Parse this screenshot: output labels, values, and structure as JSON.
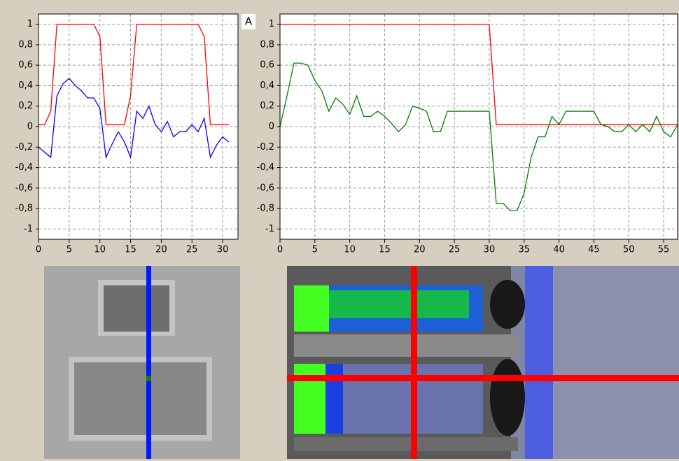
{
  "label": "A",
  "chart_data": [
    {
      "type": "line",
      "x": [
        0,
        1,
        2,
        3,
        4,
        5,
        6,
        7,
        8,
        9,
        10,
        11,
        12,
        13,
        14,
        15,
        16,
        17,
        18,
        19,
        20,
        21,
        22,
        23,
        24,
        25,
        26,
        27,
        28,
        29,
        30,
        31
      ],
      "series": [
        {
          "color": "#ff0000",
          "values": [
            0.02,
            0.02,
            0.15,
            1,
            1,
            1,
            1,
            1,
            1,
            1,
            0.88,
            0.02,
            0.02,
            0.02,
            0.02,
            0.3,
            1,
            1,
            1,
            1,
            1,
            1,
            1,
            1,
            1,
            1,
            1,
            0.88,
            0.02,
            0.02,
            0.02,
            0.02
          ]
        },
        {
          "color": "#0000ff",
          "values": [
            -0.2,
            -0.25,
            -0.3,
            0.3,
            0.42,
            0.47,
            0.4,
            0.35,
            0.28,
            0.28,
            0.18,
            -0.3,
            -0.17,
            -0.05,
            -0.15,
            -0.3,
            0.15,
            0.08,
            0.2,
            0.02,
            -0.05,
            0.05,
            -0.1,
            -0.05,
            -0.05,
            0.02,
            -0.05,
            0.08,
            -0.3,
            -0.18,
            -0.1,
            -0.15
          ]
        }
      ],
      "xlim": [
        0,
        32.5
      ],
      "xticks": [
        0,
        5,
        10,
        15,
        20,
        25,
        30
      ],
      "ylim": [
        -1.1,
        1.1
      ],
      "yticks": [
        -1,
        {
          "value": -0.8,
          "label": "-0,8"
        },
        {
          "value": -0.6,
          "label": "-0,6"
        },
        {
          "value": -0.4,
          "label": "-0,4"
        },
        {
          "value": -0.2,
          "label": "-0,2"
        },
        0,
        {
          "value": 0.2,
          "label": "0,2"
        },
        {
          "value": 0.4,
          "label": "0,4"
        },
        {
          "value": 0.6,
          "label": "0,6"
        },
        {
          "value": 0.8,
          "label": "0,8"
        },
        1
      ],
      "grid": true
    },
    {
      "type": "line",
      "x": [
        0,
        1,
        2,
        3,
        4,
        5,
        6,
        7,
        8,
        9,
        10,
        11,
        12,
        13,
        14,
        15,
        16,
        17,
        18,
        19,
        20,
        21,
        22,
        23,
        24,
        25,
        26,
        27,
        28,
        29,
        30,
        31,
        32,
        33,
        34,
        35,
        36,
        37,
        38,
        39,
        40,
        41,
        42,
        43,
        44,
        45,
        46,
        47,
        48,
        49,
        50,
        51,
        52,
        53,
        54,
        55,
        56,
        57
      ],
      "series": [
        {
          "color": "#ff0000",
          "values": [
            1,
            1,
            1,
            1,
            1,
            1,
            1,
            1,
            1,
            1,
            1,
            1,
            1,
            1,
            1,
            1,
            1,
            1,
            1,
            1,
            1,
            1,
            1,
            1,
            1,
            1,
            1,
            1,
            1,
            1,
            1,
            0.02,
            0.02,
            0.02,
            0.02,
            0.02,
            0.02,
            0.02,
            0.02,
            0.02,
            0.02,
            0.02,
            0.02,
            0.02,
            0.02,
            0.02,
            0.02,
            0.02,
            0.02,
            0.02,
            0.02,
            0.02,
            0.02,
            0.02,
            0.02,
            0.02,
            0.02,
            0.02
          ]
        },
        {
          "color": "#008000",
          "values": [
            0,
            0.3,
            0.62,
            0.62,
            0.6,
            0.45,
            0.35,
            0.15,
            0.28,
            0.22,
            0.12,
            0.3,
            0.1,
            0.1,
            0.15,
            0.1,
            0.03,
            -0.05,
            0.02,
            0.2,
            0.18,
            0.15,
            -0.05,
            -0.05,
            0.15,
            0.15,
            0.15,
            0.15,
            0.15,
            0.15,
            0.15,
            -0.75,
            -0.75,
            -0.82,
            -0.82,
            -0.65,
            -0.3,
            -0.1,
            -0.1,
            0.1,
            0.02,
            0.15,
            0.15,
            0.15,
            0.15,
            0.15,
            0.02,
            0,
            -0.05,
            -0.05,
            0.02,
            -0.05,
            0.02,
            -0.05,
            0.1,
            -0.05,
            -0.1,
            0.02
          ]
        }
      ],
      "xlim": [
        0,
        57
      ],
      "xticks": [
        0,
        5,
        10,
        15,
        20,
        25,
        30,
        35,
        40,
        45,
        50,
        55
      ],
      "ylim": [
        -1.1,
        1.1
      ],
      "yticks": [
        -1,
        {
          "value": -0.8,
          "label": "-0,8"
        },
        {
          "value": -0.6,
          "label": "-0,6"
        },
        {
          "value": -0.4,
          "label": "-0,4"
        },
        {
          "value": -0.2,
          "label": "-0,2"
        },
        0,
        {
          "value": 0.2,
          "label": "0,2"
        },
        {
          "value": 0.4,
          "label": "0,4"
        },
        {
          "value": 0.6,
          "label": "0,6"
        },
        {
          "value": 0.8,
          "label": "0,8"
        },
        1
      ],
      "grid": true
    }
  ]
}
